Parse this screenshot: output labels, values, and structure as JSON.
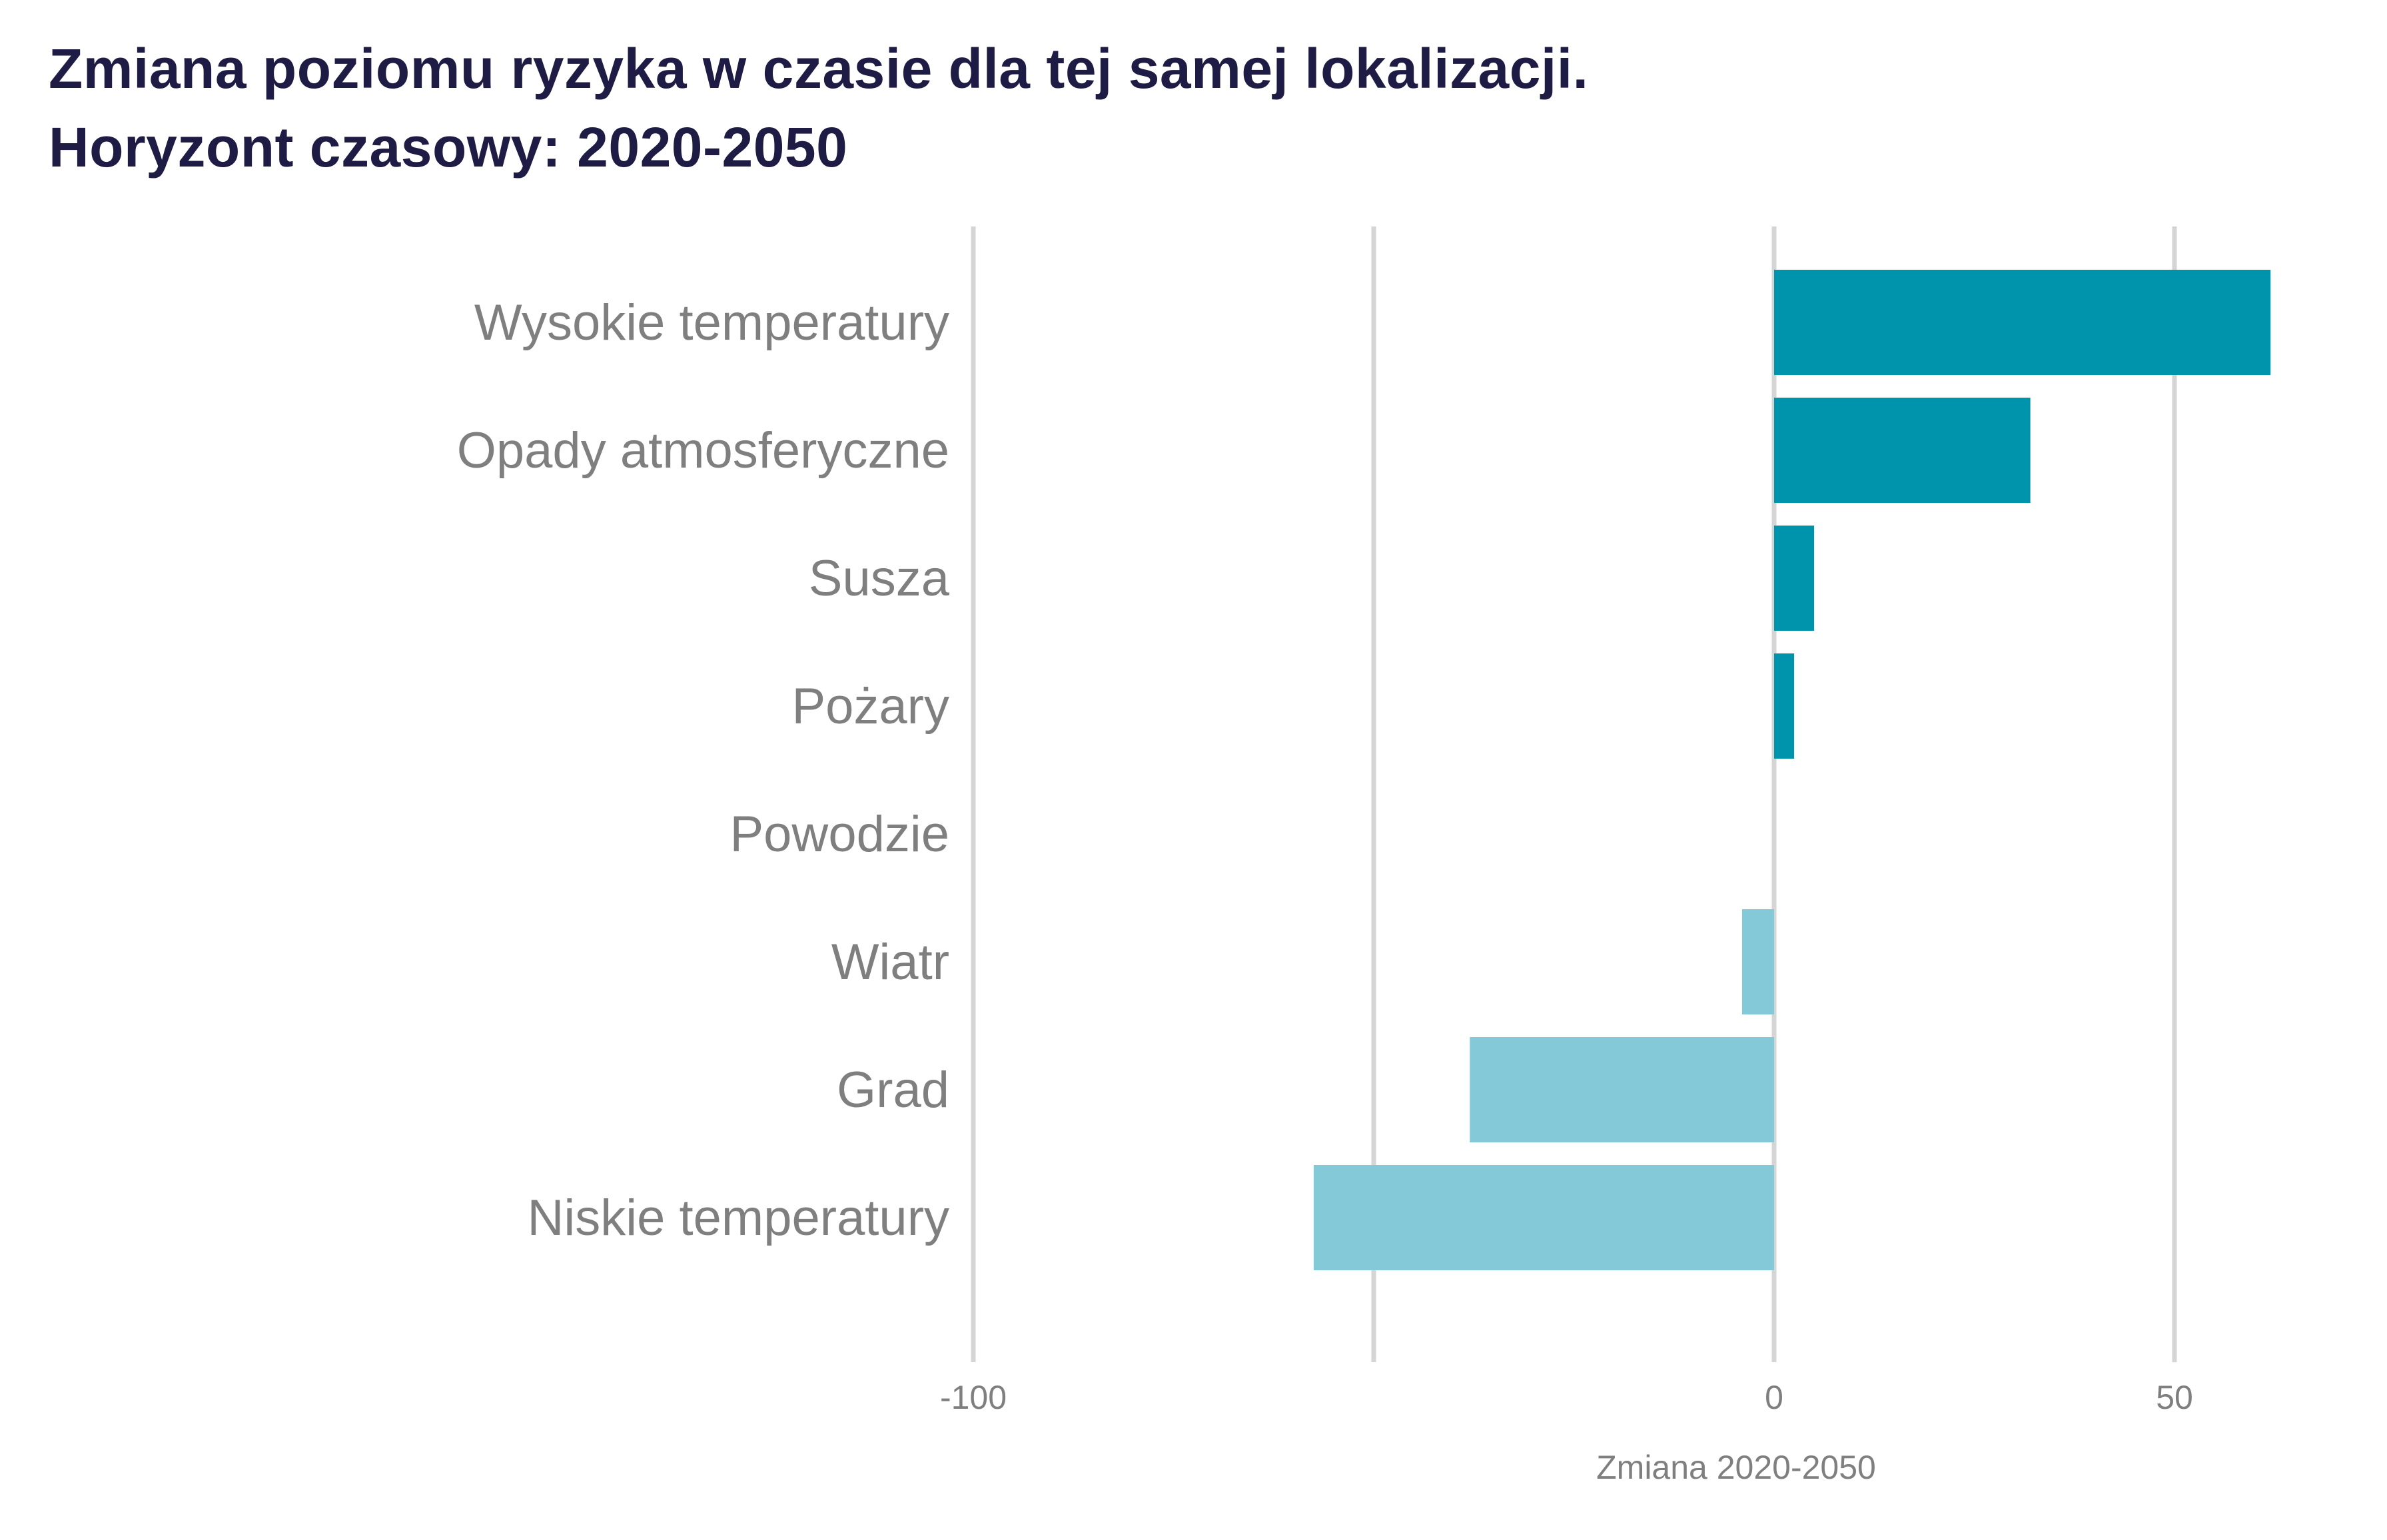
{
  "chart_data": {
    "type": "bar",
    "orientation": "horizontal",
    "title": "Zmiana poziomu ryzyka w czasie dla tej samej lokalizacji.",
    "subtitle": "Horyzont czasowy: 2020-2050",
    "xlabel": "Zmiana 2020-2050",
    "ylabel": "",
    "xlim": [
      -100,
      62
    ],
    "xticks": [
      -100,
      0,
      50
    ],
    "gridlines": [
      -100,
      -50,
      0,
      50
    ],
    "grid": true,
    "legend": "none",
    "colors": {
      "positive": "#0093ac",
      "negative": "#84c9d7",
      "grid": "#d5d5d5",
      "title": "#1e1b45",
      "label": "#7f7f7f"
    },
    "categories": [
      "Wysokie temperatury",
      "Opady atmosferyczne",
      "Susza",
      "Pożary",
      "Powodzie",
      "Wiatr",
      "Grad",
      "Niskie temperatury"
    ],
    "values": [
      62,
      32,
      5,
      2.5,
      0,
      -4,
      -38,
      -57.5
    ]
  }
}
